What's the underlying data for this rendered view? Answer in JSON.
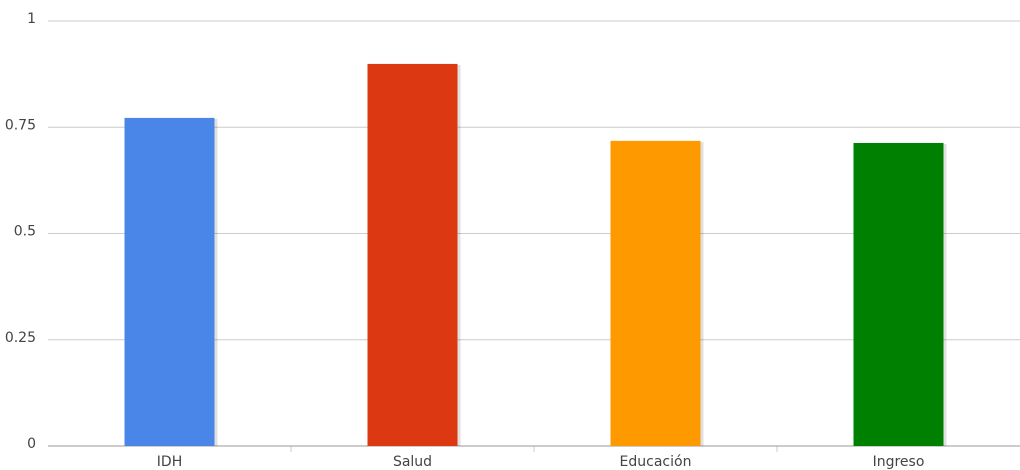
{
  "chart_data": {
    "type": "bar",
    "categories": [
      "IDH",
      "Salud",
      "Educación",
      "Ingreso"
    ],
    "values": [
      0.772,
      0.899,
      0.718,
      0.713
    ],
    "colors": [
      "#4a86e8",
      "#dc3912",
      "#ff9900",
      "#008000"
    ],
    "ylim": [
      0,
      1
    ],
    "yticks": [
      0,
      0.25,
      0.5,
      0.75,
      1
    ],
    "grid": true
  }
}
